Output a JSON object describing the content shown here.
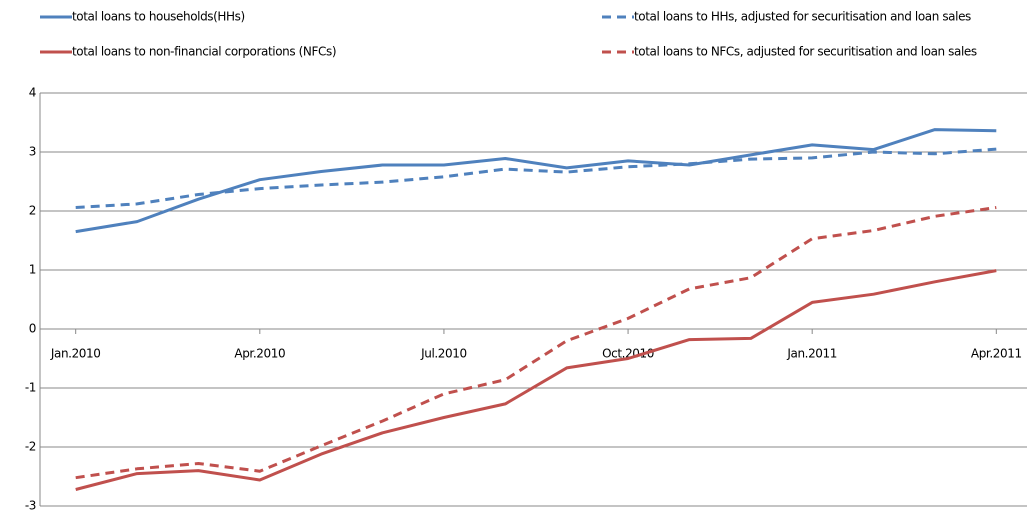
{
  "chart_data": {
    "type": "line",
    "categories": [
      "Jan.2010",
      null,
      null,
      "Apr.2010",
      null,
      null,
      "Jul.2010",
      null,
      null,
      "Oct.2010",
      null,
      null,
      "Jan.2011",
      null,
      null,
      "Apr.2011"
    ],
    "series": [
      {
        "name": "total loans to households(HHs)",
        "color": "#4f81bd",
        "dashed": false,
        "values": [
          1.65,
          1.82,
          2.2,
          2.53,
          2.67,
          2.78,
          2.78,
          2.89,
          2.73,
          2.85,
          2.78,
          2.95,
          3.12,
          3.04,
          3.38,
          3.36
        ]
      },
      {
        "name": "total loans to HHs, adjusted for securitisation and loan sales",
        "color": "#4f81bd",
        "dashed": true,
        "values": [
          2.06,
          2.12,
          2.28,
          2.38,
          2.44,
          2.49,
          2.58,
          2.71,
          2.66,
          2.75,
          2.8,
          2.88,
          2.9,
          3.0,
          2.97,
          3.05
        ]
      },
      {
        "name": "total loans to non-financial corporations (NFCs)",
        "color": "#c0504d",
        "dashed": false,
        "values": [
          -2.72,
          -2.45,
          -2.4,
          -2.56,
          -2.12,
          -1.76,
          -1.5,
          -1.27,
          -0.66,
          -0.5,
          -0.18,
          -0.16,
          0.45,
          0.59,
          0.8,
          0.99
        ]
      },
      {
        "name": "total loans to NFCs, adjusted for securitisation and loan sales",
        "color": "#c0504d",
        "dashed": true,
        "values": [
          -2.52,
          -2.37,
          -2.28,
          -2.41,
          -1.98,
          -1.56,
          -1.1,
          -0.86,
          -0.2,
          0.18,
          0.68,
          0.87,
          1.53,
          1.67,
          1.91,
          2.06
        ]
      }
    ],
    "ylim": [
      -3,
      4
    ],
    "yticks": [
      -3,
      -2,
      -1,
      0,
      1,
      2,
      3,
      4
    ],
    "grid": true
  }
}
